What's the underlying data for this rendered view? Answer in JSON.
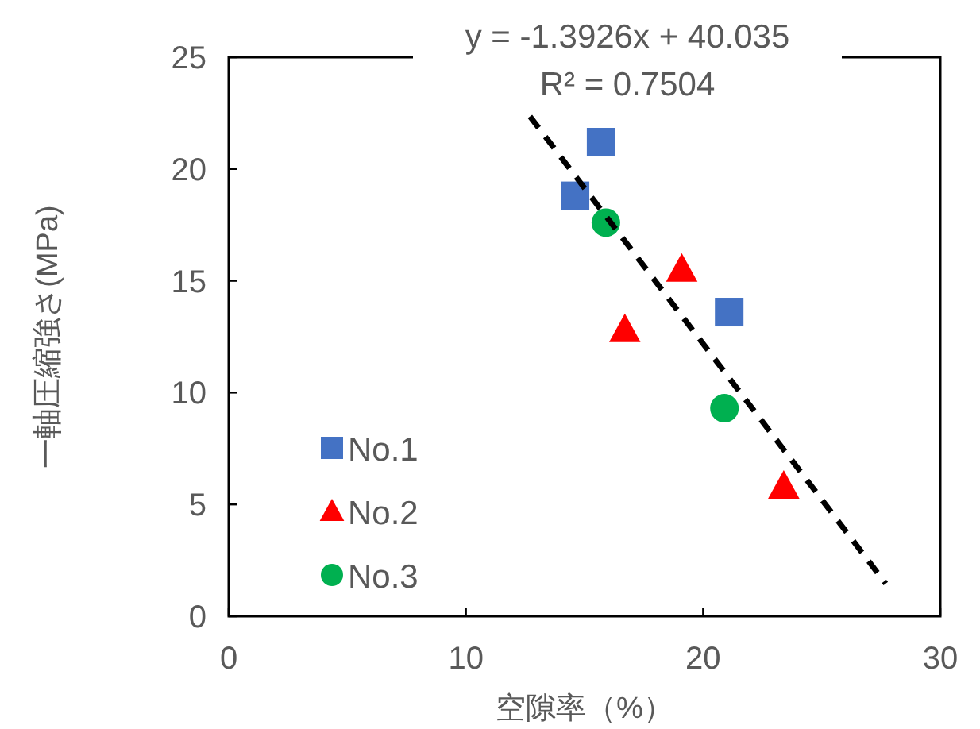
{
  "chart_data": {
    "type": "scatter",
    "xlabel": "空隙率（%）",
    "ylabel": "一軸圧縮強さ(MPa)",
    "annotations": [
      "y = -1.3926x + 40.035",
      "R² = 0.7504"
    ],
    "xlim": [
      0,
      30
    ],
    "xticks": [
      0,
      10,
      20,
      30
    ],
    "ylim": [
      0,
      25
    ],
    "yticks": [
      0,
      5,
      10,
      15,
      20,
      25
    ],
    "grid": false,
    "legend": "bottom left",
    "series": [
      {
        "name": "No.1",
        "color": "#4472c4",
        "marker": "square",
        "x": [
          15.7,
          14.6,
          21.1
        ],
        "values": [
          21.2,
          18.8,
          13.6
        ]
      },
      {
        "name": "No.2",
        "color": "#ff0000",
        "marker": "triangle",
        "x": [
          19.1,
          16.7,
          23.4
        ],
        "values": [
          15.5,
          12.8,
          5.8
        ]
      },
      {
        "name": "No.3",
        "color": "#00b050",
        "marker": "circle",
        "x": [
          15.9,
          20.9
        ],
        "values": [
          17.6,
          9.3
        ]
      },
      {
        "type": "line",
        "color": "#000000",
        "line_style": "dashed",
        "marker": "none",
        "x": [
          12.7,
          27.7
        ],
        "values": [
          22.35,
          1.46
        ]
      }
    ]
  }
}
